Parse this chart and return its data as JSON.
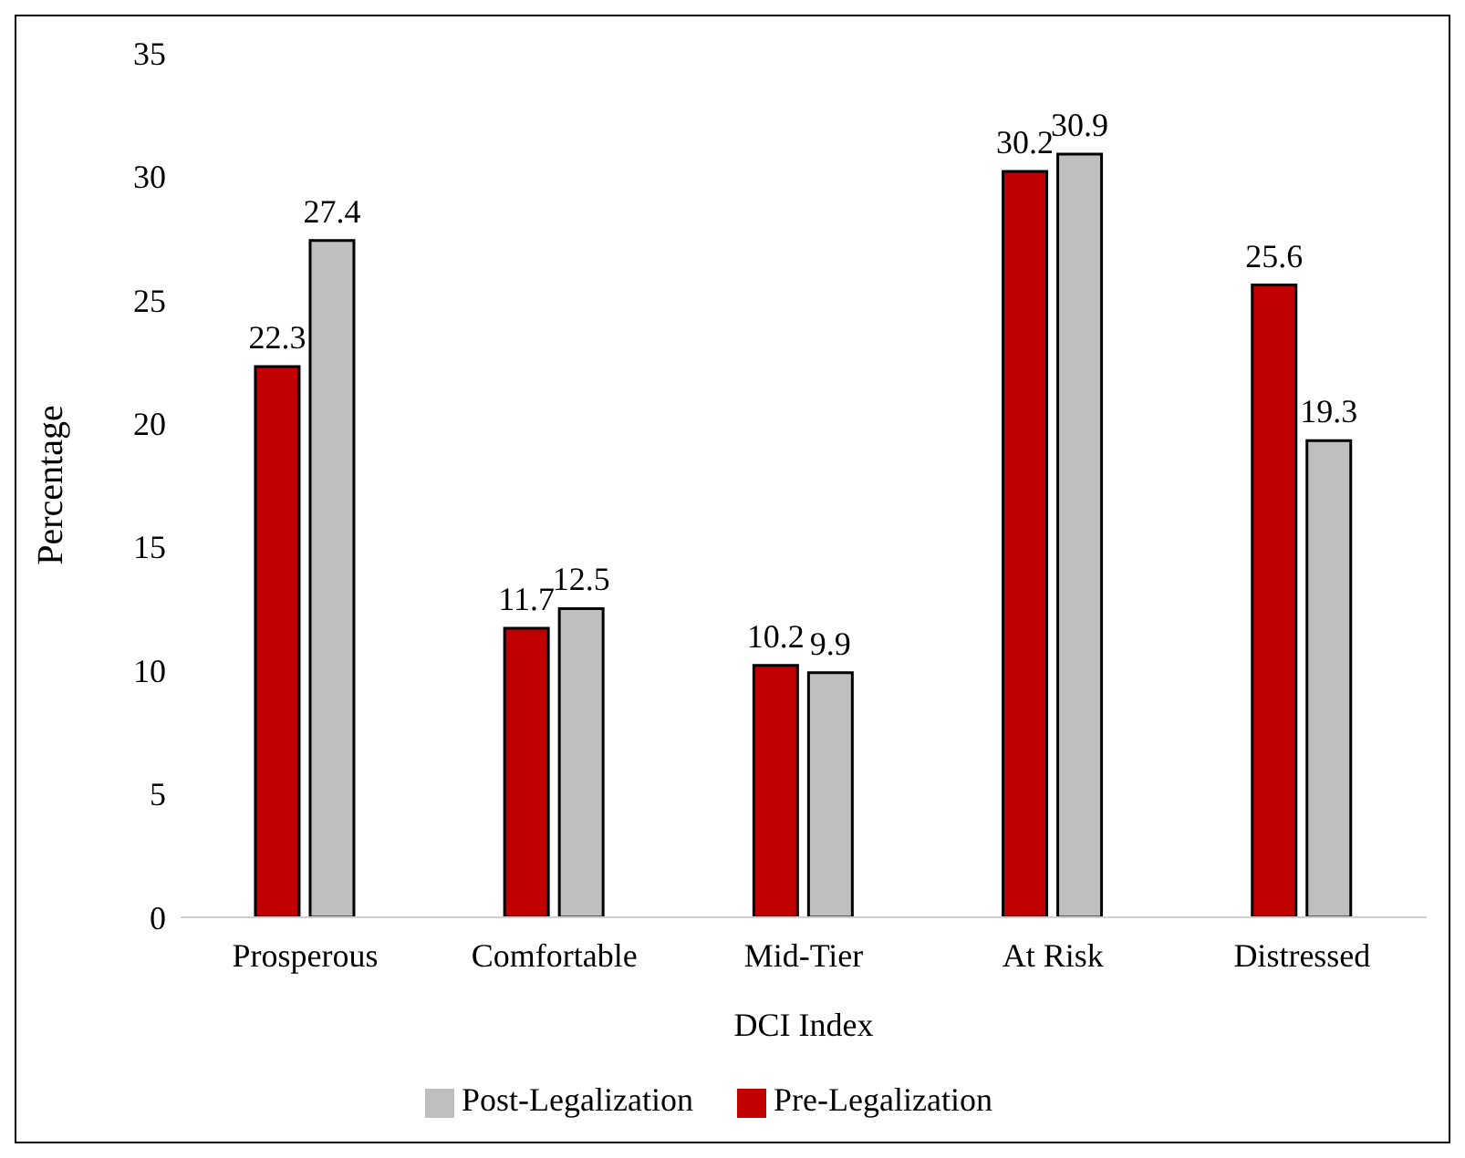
{
  "chart_data": {
    "type": "bar",
    "xlabel": "DCI Index",
    "ylabel": "Percentage",
    "categories": [
      "Prosperous",
      "Comfortable",
      "Mid-Tier",
      "At Risk",
      "Distressed"
    ],
    "series": [
      {
        "name": "Pre-Legalization",
        "color": "#c00000",
        "values": [
          22.3,
          11.7,
          10.2,
          30.2,
          25.6
        ]
      },
      {
        "name": "Post-Legalization",
        "color": "#bfbfbf",
        "values": [
          27.4,
          12.5,
          9.9,
          30.9,
          19.3
        ]
      }
    ],
    "ylim": [
      0,
      35
    ],
    "yticks": [
      0,
      5,
      10,
      15,
      20,
      25,
      30,
      35
    ],
    "grid": false,
    "legend": "bottom",
    "data_labels": true
  }
}
